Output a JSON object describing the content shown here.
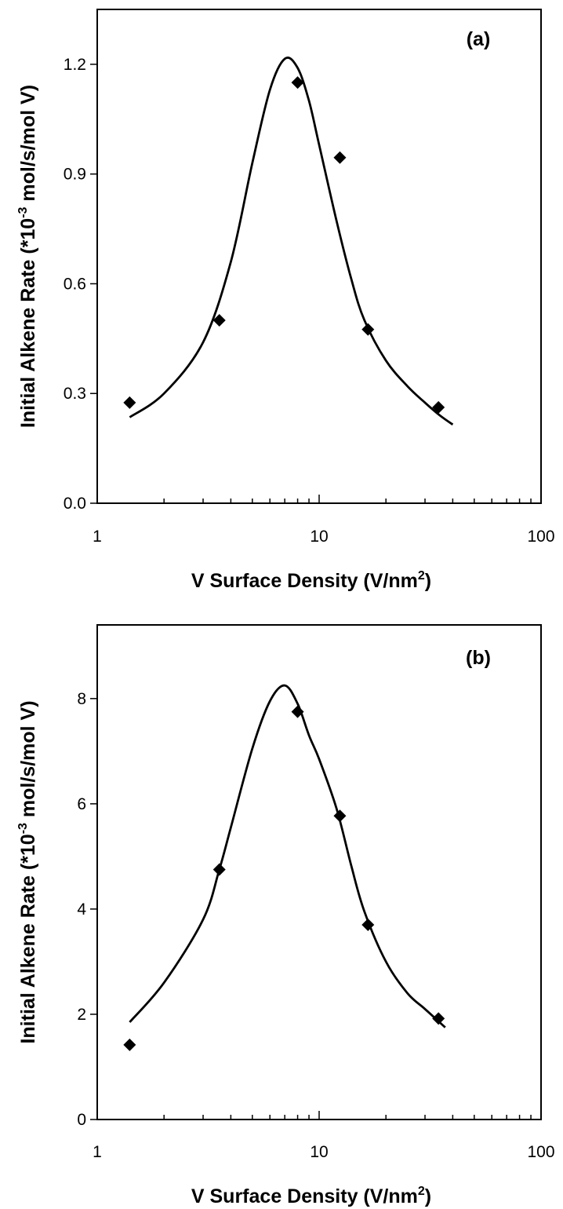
{
  "chart_data": [
    {
      "type": "scatter",
      "panel_label": "(a)",
      "xlabel_main": "V Surface Density (V/nm",
      "xlabel_sup": "2",
      "xlabel_end": ")",
      "ylabel_pre": "Initial Alkene Rate (*10",
      "ylabel_sup": "-3",
      "ylabel_post": " mol/s/mol V)",
      "xscale": "log",
      "xlim": [
        1,
        100
      ],
      "ylim": [
        0,
        1.35
      ],
      "xticks": [
        1,
        10,
        100
      ],
      "xtick_labels": [
        "1",
        "10",
        "100"
      ],
      "yticks": [
        0.0,
        0.3,
        0.6,
        0.9,
        1.2
      ],
      "ytick_labels": [
        "0.0",
        "0.3",
        "0.6",
        "0.9",
        "1.2"
      ],
      "grid": false,
      "points": {
        "x": [
          1.4,
          3.55,
          8.0,
          12.4,
          16.6,
          34.5
        ],
        "y": [
          0.275,
          0.5,
          1.15,
          0.945,
          0.475,
          0.262
        ]
      },
      "fit": {
        "x": [
          1.4,
          2.0,
          3.0,
          4.0,
          5.0,
          6.0,
          7.0,
          8.0,
          9.0,
          10.0,
          12.0,
          14.0,
          16.0,
          20.0,
          25.0,
          30.0,
          35.0,
          40.0
        ],
        "y": [
          0.235,
          0.3,
          0.44,
          0.66,
          0.93,
          1.13,
          1.215,
          1.19,
          1.1,
          0.98,
          0.77,
          0.61,
          0.5,
          0.39,
          0.32,
          0.275,
          0.24,
          0.215
        ]
      }
    },
    {
      "type": "scatter",
      "panel_label": "(b)",
      "xlabel_main": "V Surface Density (V/nm",
      "xlabel_sup": "2",
      "xlabel_end": ")",
      "ylabel_pre": "Initial Alkene Rate (*10",
      "ylabel_sup": "-3",
      "ylabel_post": " mol/s/mol V)",
      "xscale": "log",
      "xlim": [
        1,
        100
      ],
      "ylim": [
        0,
        9.4
      ],
      "xticks": [
        1,
        10,
        100
      ],
      "xtick_labels": [
        "1",
        "10",
        "100"
      ],
      "yticks": [
        0,
        2,
        4,
        6,
        8
      ],
      "ytick_labels": [
        "0",
        "2",
        "4",
        "6",
        "8"
      ],
      "grid": false,
      "points": {
        "x": [
          1.4,
          3.55,
          8.0,
          12.4,
          16.6,
          34.5
        ],
        "y": [
          1.42,
          4.75,
          7.75,
          5.77,
          3.7,
          1.92
        ]
      },
      "fit": {
        "x": [
          1.4,
          2.0,
          3.0,
          3.55,
          4.0,
          5.0,
          6.0,
          7.0,
          8.0,
          9.0,
          10.0,
          12.0,
          14.0,
          16.0,
          20.0,
          25.0,
          30.0,
          37.0
        ],
        "y": [
          1.85,
          2.6,
          3.8,
          4.75,
          5.55,
          7.05,
          7.95,
          8.25,
          7.9,
          7.3,
          6.85,
          5.9,
          4.8,
          3.95,
          3.0,
          2.4,
          2.1,
          1.75
        ]
      }
    }
  ]
}
